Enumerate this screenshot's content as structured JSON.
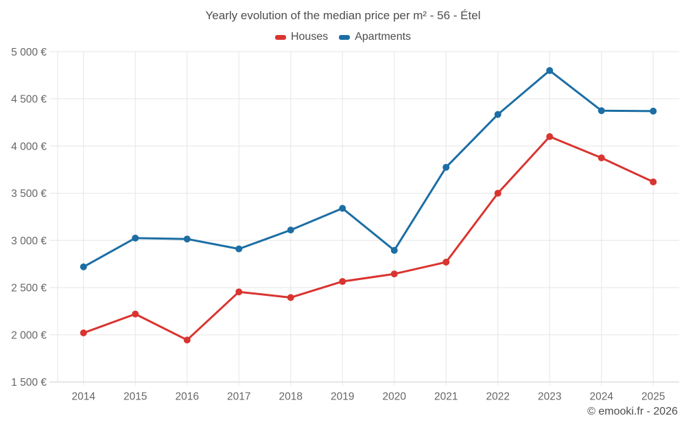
{
  "title": "Yearly evolution of the median price per m² - 56 - Étel",
  "watermark": "© emooki.fr - 2026",
  "legend": [
    {
      "label": "Houses",
      "color": "#d93430"
    },
    {
      "label": "Apartments",
      "color": "#1c6ea4"
    }
  ],
  "colors": {
    "houses": "#d93430",
    "apartments": "#1c6ea4",
    "grid": "#e6e6e6",
    "axis_line": "#cfcfcf",
    "title_text": "#4d4d4d",
    "axis_text": "#666666"
  },
  "chart_data": {
    "type": "line",
    "title": "Yearly evolution of the median price per m² - 56 - Étel",
    "categories": [
      "2014",
      "2015",
      "2016",
      "2017",
      "2018",
      "2019",
      "2020",
      "2021",
      "2022",
      "2023",
      "2024",
      "2025"
    ],
    "series": [
      {
        "name": "Houses",
        "color": "#d93430",
        "values": [
          2020,
          2220,
          1945,
          2455,
          2395,
          2565,
          2645,
          2770,
          3500,
          4100,
          3875,
          3620
        ]
      },
      {
        "name": "Apartments",
        "color": "#1c6ea4",
        "values": [
          2720,
          3025,
          3015,
          2910,
          3110,
          3340,
          2895,
          3775,
          4335,
          4800,
          4375,
          4370
        ]
      }
    ],
    "xlabel": "",
    "ylabel": "",
    "ytick_format": "{value} €",
    "ytick_step": 500,
    "ylim": [
      1500,
      5000
    ],
    "grid": true,
    "legend_position": "top",
    "marker": "circle"
  }
}
